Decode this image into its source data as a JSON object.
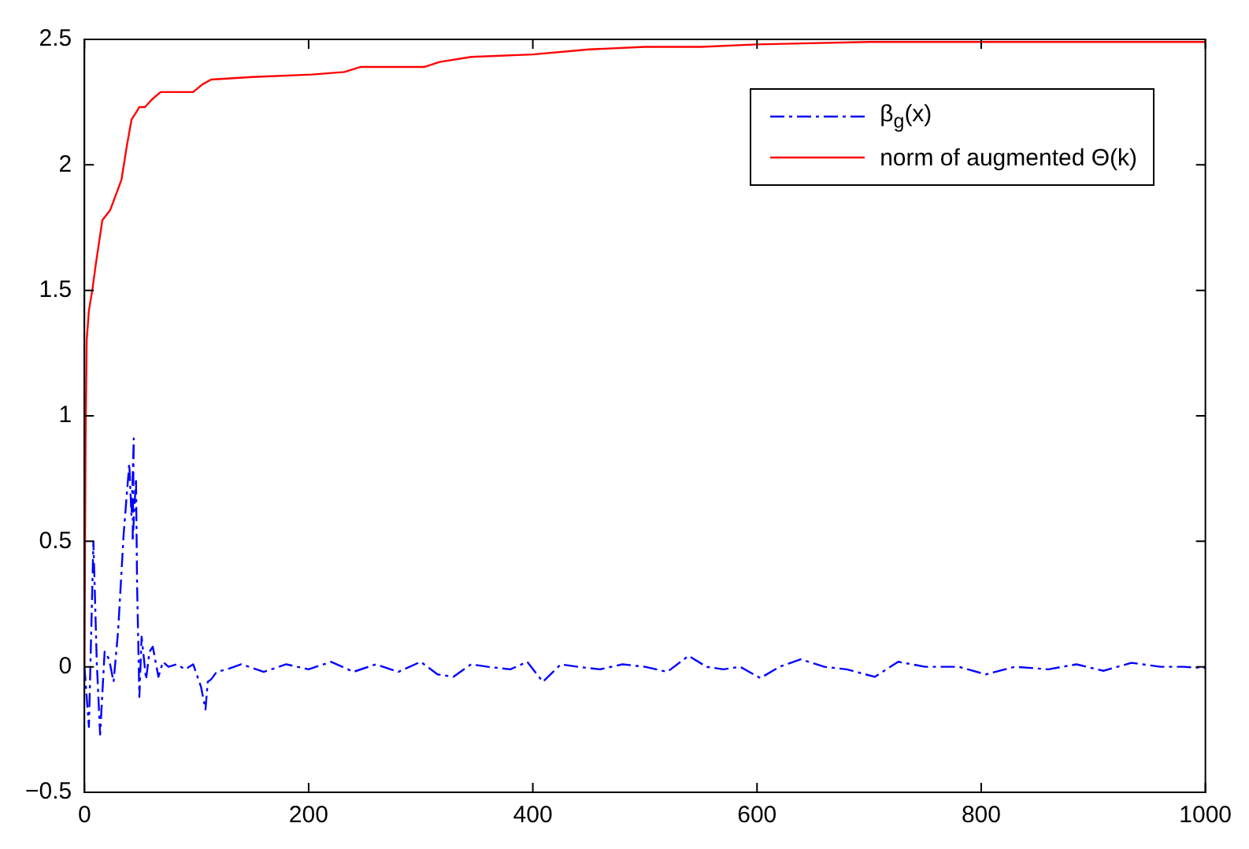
{
  "chart_data": {
    "type": "line",
    "xlim": [
      0,
      1000
    ],
    "ylim": [
      -0.5,
      2.5
    ],
    "xticks": [
      0,
      200,
      400,
      600,
      800,
      1000
    ],
    "yticks": [
      {
        "value": -0.5,
        "label": "−0.5"
      },
      0,
      0.5,
      1,
      1.5,
      2,
      2.5
    ],
    "grid": false,
    "legend": "top right",
    "marker": "none",
    "series": [
      {
        "name": "β$_{g}$(x)",
        "color": "#0000ff",
        "line_style": "dashdot",
        "x": [
          0,
          4,
          8,
          11,
          14,
          18,
          22,
          26,
          30,
          35,
          40,
          42,
          44,
          43,
          46,
          47,
          49,
          51,
          55,
          58,
          61,
          66,
          70,
          75,
          82,
          90,
          97,
          104,
          108,
          110,
          113,
          118,
          127,
          140,
          160,
          180,
          200,
          220,
          240,
          260,
          280,
          300,
          315,
          329,
          345,
          360,
          380,
          395,
          409,
          425,
          440,
          460,
          480,
          500,
          520,
          539,
          555,
          570,
          585,
          603,
          620,
          639,
          660,
          680,
          705,
          726,
          750,
          780,
          804,
          830,
          860,
          885,
          909,
          934,
          960,
          980,
          1000
        ],
        "values": [
          0,
          -0.24,
          0.5,
          0.02,
          -0.27,
          0.06,
          0.03,
          -0.06,
          0.14,
          0.53,
          0.81,
          0.6,
          0.91,
          0.5,
          0.75,
          0.32,
          -0.12,
          0.12,
          -0.05,
          0.06,
          0.08,
          -0.04,
          0.02,
          0,
          0.01,
          -0.01,
          0.01,
          -0.08,
          -0.17,
          -0.06,
          -0.05,
          -0.02,
          -0.01,
          0.01,
          -0.02,
          0.01,
          -0.01,
          0.02,
          -0.02,
          0.01,
          -0.02,
          0.02,
          -0.03,
          -0.04,
          0.01,
          0,
          -0.01,
          0.02,
          -0.06,
          0.01,
          0,
          -0.01,
          0.01,
          0,
          -0.02,
          0.044,
          0,
          -0.01,
          0,
          -0.045,
          0,
          0.03,
          0,
          -0.01,
          -0.04,
          0.02,
          0,
          0,
          -0.03,
          0,
          -0.01,
          0.01,
          -0.016,
          0.016,
          0,
          0,
          -0.005
        ]
      },
      {
        "name": "norm of augmented Θ(k)",
        "color": "#ff0000",
        "line_style": "solid",
        "x": [
          0,
          1,
          2,
          4,
          7,
          10,
          16,
          23,
          28,
          33,
          38,
          42,
          49,
          54,
          60,
          68,
          97,
          105,
          113,
          150,
          203,
          232,
          246,
          303,
          317,
          345,
          400,
          450,
          500,
          550,
          600,
          700,
          800,
          900,
          1000
        ],
        "values": [
          0,
          0.9,
          1.3,
          1.42,
          1.5,
          1.6,
          1.78,
          1.82,
          1.88,
          1.94,
          2.08,
          2.18,
          2.23,
          2.23,
          2.26,
          2.29,
          2.29,
          2.32,
          2.34,
          2.35,
          2.36,
          2.37,
          2.39,
          2.39,
          2.41,
          2.43,
          2.44,
          2.46,
          2.47,
          2.47,
          2.48,
          2.49,
          2.49,
          2.49,
          2.49
        ]
      }
    ]
  }
}
